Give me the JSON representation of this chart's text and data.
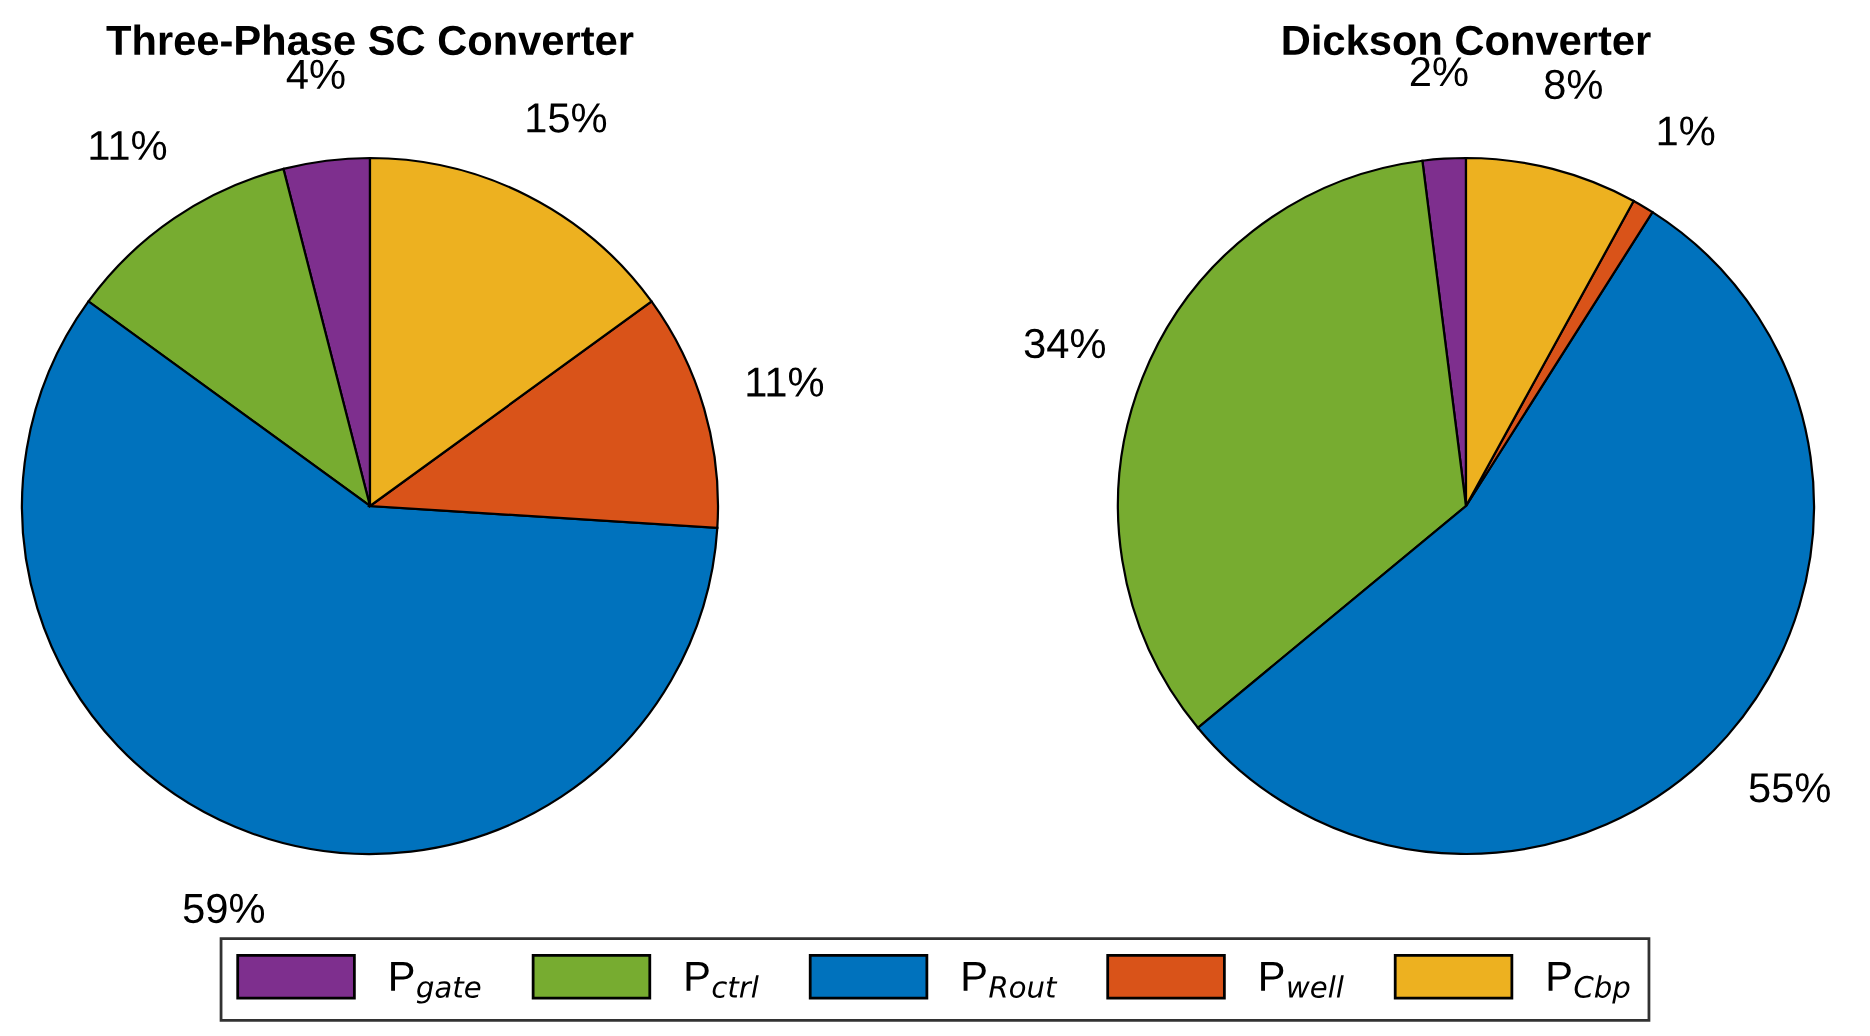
{
  "chart_data": [
    {
      "type": "pie",
      "title": "Three-Phase SC Converter",
      "categories": [
        "P$_{gate}$",
        "P$_{ctrl}$",
        "P$_{Rout}$",
        "P$_{well}$",
        "P$_{Cbp}$"
      ],
      "values": [
        4,
        11,
        59,
        11,
        15
      ],
      "colors": [
        "#7e2f8e",
        "#77ac30",
        "#0072bd",
        "#d95319",
        "#edb120"
      ],
      "value_labels": [
        "4%",
        "11%",
        "59%",
        "11%",
        "15%"
      ],
      "legend": "bottom"
    },
    {
      "type": "pie",
      "title": "Dickson Converter",
      "categories": [
        null,
        null,
        null,
        null,
        null
      ],
      "values": [
        2,
        34,
        55,
        1,
        8
      ],
      "colors": [
        "#7e2f8e",
        "#77ac30",
        "#0072bd",
        "#d95319",
        "#edb120"
      ],
      "value_labels": [
        "2%",
        "34%",
        "55%",
        "1%",
        "8%"
      ]
    }
  ]
}
